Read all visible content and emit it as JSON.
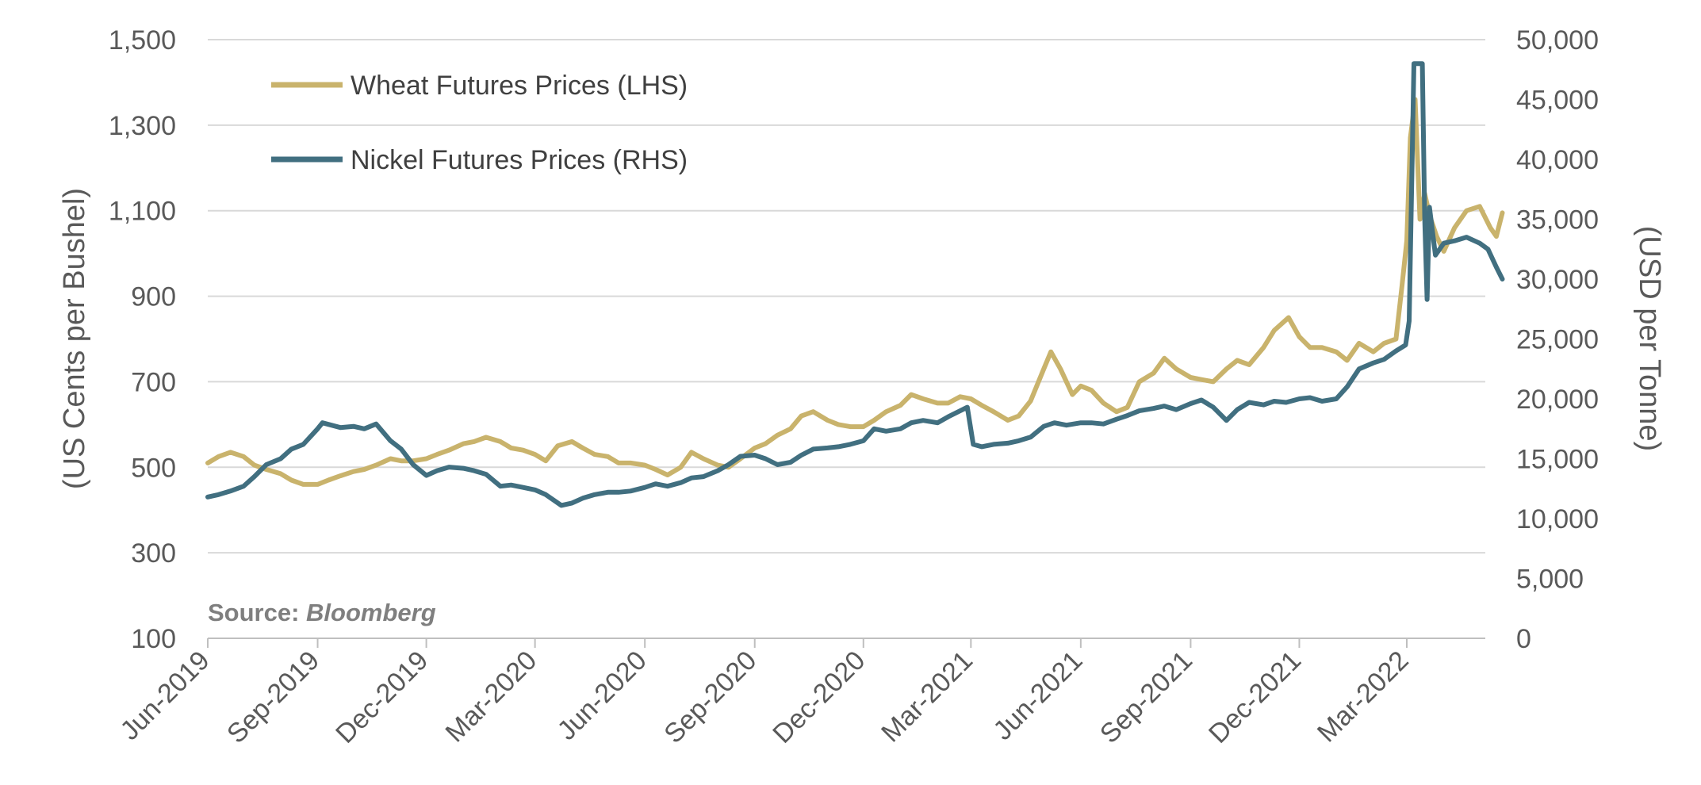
{
  "chart_data": {
    "type": "line",
    "title": "",
    "ylabel_left": "(US Cents per Bushel)",
    "ylabel_right": "(USD per Tonne)",
    "y_left": {
      "min": 100,
      "max": 1500,
      "ticks": [
        100,
        300,
        500,
        700,
        900,
        1100,
        1300,
        1500
      ],
      "tick_labels": [
        "100",
        "300",
        "500",
        "700",
        "900",
        "1,100",
        "1,300",
        "1,500"
      ]
    },
    "y_right": {
      "min": 0,
      "max": 50000,
      "ticks": [
        0,
        5000,
        10000,
        15000,
        20000,
        25000,
        30000,
        35000,
        40000,
        45000,
        50000
      ],
      "tick_labels": [
        "0",
        "5,000",
        "10,000",
        "15,000",
        "20,000",
        "25,000",
        "30,000",
        "35,000",
        "40,000",
        "45,000",
        "50,000"
      ]
    },
    "x_axis": {
      "start": "2019-06-01",
      "end": "2022-05-20",
      "tick_dates": [
        "2019-06-01",
        "2019-09-01",
        "2019-12-01",
        "2020-03-01",
        "2020-06-01",
        "2020-09-01",
        "2020-12-01",
        "2021-03-01",
        "2021-06-01",
        "2021-09-01",
        "2021-12-01",
        "2022-03-01"
      ],
      "tick_labels": [
        "Jun-2019",
        "Sep-2019",
        "Dec-2019",
        "Mar-2020",
        "Jun-2020",
        "Sep-2020",
        "Dec-2020",
        "Mar-2021",
        "Jun-2021",
        "Sep-2021",
        "Dec-2021",
        "Mar-2022"
      ]
    },
    "grid": true,
    "legend_position": "top-left",
    "annotation": {
      "prefix": "Source:",
      "source": "Bloomberg"
    },
    "series": [
      {
        "name": "Wheat Futures Prices (LHS)",
        "axis": "left",
        "color": "#c9b36c",
        "points": [
          [
            "2019-06-01",
            510
          ],
          [
            "2019-06-10",
            525
          ],
          [
            "2019-06-20",
            535
          ],
          [
            "2019-07-01",
            525
          ],
          [
            "2019-07-10",
            505
          ],
          [
            "2019-07-20",
            495
          ],
          [
            "2019-08-01",
            485
          ],
          [
            "2019-08-10",
            470
          ],
          [
            "2019-08-20",
            460
          ],
          [
            "2019-09-01",
            460
          ],
          [
            "2019-09-10",
            470
          ],
          [
            "2019-09-20",
            480
          ],
          [
            "2019-10-01",
            490
          ],
          [
            "2019-10-10",
            495
          ],
          [
            "2019-10-20",
            505
          ],
          [
            "2019-11-01",
            520
          ],
          [
            "2019-11-10",
            515
          ],
          [
            "2019-11-20",
            515
          ],
          [
            "2019-12-01",
            520
          ],
          [
            "2019-12-10",
            530
          ],
          [
            "2019-12-20",
            540
          ],
          [
            "2020-01-01",
            555
          ],
          [
            "2020-01-10",
            560
          ],
          [
            "2020-01-20",
            570
          ],
          [
            "2020-02-01",
            560
          ],
          [
            "2020-02-10",
            545
          ],
          [
            "2020-02-20",
            540
          ],
          [
            "2020-03-01",
            530
          ],
          [
            "2020-03-10",
            515
          ],
          [
            "2020-03-20",
            550
          ],
          [
            "2020-04-01",
            560
          ],
          [
            "2020-04-10",
            545
          ],
          [
            "2020-04-20",
            530
          ],
          [
            "2020-05-01",
            525
          ],
          [
            "2020-05-10",
            510
          ],
          [
            "2020-05-20",
            510
          ],
          [
            "2020-06-01",
            505
          ],
          [
            "2020-06-10",
            495
          ],
          [
            "2020-06-20",
            482
          ],
          [
            "2020-07-01",
            500
          ],
          [
            "2020-07-10",
            535
          ],
          [
            "2020-07-20",
            520
          ],
          [
            "2020-08-01",
            505
          ],
          [
            "2020-08-10",
            500
          ],
          [
            "2020-08-20",
            520
          ],
          [
            "2020-09-01",
            545
          ],
          [
            "2020-09-10",
            555
          ],
          [
            "2020-09-20",
            575
          ],
          [
            "2020-10-01",
            590
          ],
          [
            "2020-10-10",
            620
          ],
          [
            "2020-10-20",
            630
          ],
          [
            "2020-11-01",
            610
          ],
          [
            "2020-11-10",
            600
          ],
          [
            "2020-11-20",
            595
          ],
          [
            "2020-12-01",
            595
          ],
          [
            "2020-12-10",
            610
          ],
          [
            "2020-12-20",
            630
          ],
          [
            "2021-01-01",
            645
          ],
          [
            "2021-01-10",
            670
          ],
          [
            "2021-01-20",
            660
          ],
          [
            "2021-02-01",
            650
          ],
          [
            "2021-02-10",
            650
          ],
          [
            "2021-02-20",
            665
          ],
          [
            "2021-03-01",
            660
          ],
          [
            "2021-03-10",
            645
          ],
          [
            "2021-03-20",
            630
          ],
          [
            "2021-04-01",
            610
          ],
          [
            "2021-04-10",
            620
          ],
          [
            "2021-04-20",
            655
          ],
          [
            "2021-05-01",
            730
          ],
          [
            "2021-05-07",
            770
          ],
          [
            "2021-05-15",
            730
          ],
          [
            "2021-05-25",
            670
          ],
          [
            "2021-06-01",
            690
          ],
          [
            "2021-06-10",
            680
          ],
          [
            "2021-06-20",
            650
          ],
          [
            "2021-07-01",
            630
          ],
          [
            "2021-07-10",
            640
          ],
          [
            "2021-07-20",
            700
          ],
          [
            "2021-08-01",
            720
          ],
          [
            "2021-08-10",
            755
          ],
          [
            "2021-08-20",
            730
          ],
          [
            "2021-09-01",
            710
          ],
          [
            "2021-09-10",
            705
          ],
          [
            "2021-09-20",
            700
          ],
          [
            "2021-10-01",
            730
          ],
          [
            "2021-10-10",
            750
          ],
          [
            "2021-10-20",
            740
          ],
          [
            "2021-11-01",
            780
          ],
          [
            "2021-11-10",
            820
          ],
          [
            "2021-11-22",
            850
          ],
          [
            "2021-12-01",
            805
          ],
          [
            "2021-12-10",
            780
          ],
          [
            "2021-12-20",
            780
          ],
          [
            "2022-01-01",
            770
          ],
          [
            "2022-01-10",
            750
          ],
          [
            "2022-01-20",
            790
          ],
          [
            "2022-02-01",
            770
          ],
          [
            "2022-02-10",
            790
          ],
          [
            "2022-02-20",
            800
          ],
          [
            "2022-02-25",
            925
          ],
          [
            "2022-03-01",
            1030
          ],
          [
            "2022-03-04",
            1270
          ],
          [
            "2022-03-08",
            1360
          ],
          [
            "2022-03-12",
            1080
          ],
          [
            "2022-03-16",
            1140
          ],
          [
            "2022-03-20",
            1090
          ],
          [
            "2022-03-26",
            1040
          ],
          [
            "2022-04-01",
            1005
          ],
          [
            "2022-04-10",
            1060
          ],
          [
            "2022-04-20",
            1100
          ],
          [
            "2022-05-01",
            1110
          ],
          [
            "2022-05-10",
            1060
          ],
          [
            "2022-05-15",
            1040
          ],
          [
            "2022-05-20",
            1095
          ]
        ]
      },
      {
        "name": "Nickel Futures Prices (RHS)",
        "axis": "right",
        "color": "#416f80",
        "points": [
          [
            "2019-06-01",
            11800
          ],
          [
            "2019-06-10",
            12000
          ],
          [
            "2019-06-20",
            12300
          ],
          [
            "2019-07-01",
            12700
          ],
          [
            "2019-07-10",
            13500
          ],
          [
            "2019-07-20",
            14500
          ],
          [
            "2019-08-01",
            15000
          ],
          [
            "2019-08-10",
            15800
          ],
          [
            "2019-08-20",
            16200
          ],
          [
            "2019-09-01",
            17500
          ],
          [
            "2019-09-05",
            18000
          ],
          [
            "2019-09-20",
            17600
          ],
          [
            "2019-10-01",
            17700
          ],
          [
            "2019-10-10",
            17500
          ],
          [
            "2019-10-20",
            17900
          ],
          [
            "2019-11-01",
            16500
          ],
          [
            "2019-11-10",
            15800
          ],
          [
            "2019-11-20",
            14500
          ],
          [
            "2019-12-01",
            13600
          ],
          [
            "2019-12-10",
            14000
          ],
          [
            "2019-12-20",
            14300
          ],
          [
            "2020-01-01",
            14200
          ],
          [
            "2020-01-10",
            14000
          ],
          [
            "2020-01-20",
            13700
          ],
          [
            "2020-02-01",
            12700
          ],
          [
            "2020-02-10",
            12800
          ],
          [
            "2020-02-20",
            12600
          ],
          [
            "2020-03-01",
            12400
          ],
          [
            "2020-03-10",
            12000
          ],
          [
            "2020-03-23",
            11100
          ],
          [
            "2020-04-01",
            11300
          ],
          [
            "2020-04-10",
            11700
          ],
          [
            "2020-04-20",
            12000
          ],
          [
            "2020-05-01",
            12200
          ],
          [
            "2020-05-10",
            12200
          ],
          [
            "2020-05-20",
            12300
          ],
          [
            "2020-06-01",
            12600
          ],
          [
            "2020-06-10",
            12900
          ],
          [
            "2020-06-20",
            12700
          ],
          [
            "2020-07-01",
            13000
          ],
          [
            "2020-07-10",
            13400
          ],
          [
            "2020-07-20",
            13500
          ],
          [
            "2020-08-01",
            14000
          ],
          [
            "2020-08-10",
            14500
          ],
          [
            "2020-08-20",
            15200
          ],
          [
            "2020-09-01",
            15300
          ],
          [
            "2020-09-10",
            15000
          ],
          [
            "2020-09-20",
            14500
          ],
          [
            "2020-10-01",
            14700
          ],
          [
            "2020-10-10",
            15300
          ],
          [
            "2020-10-20",
            15800
          ],
          [
            "2020-11-01",
            15900
          ],
          [
            "2020-11-10",
            16000
          ],
          [
            "2020-11-20",
            16200
          ],
          [
            "2020-12-01",
            16500
          ],
          [
            "2020-12-10",
            17500
          ],
          [
            "2020-12-20",
            17300
          ],
          [
            "2021-01-01",
            17500
          ],
          [
            "2021-01-10",
            18000
          ],
          [
            "2021-01-20",
            18200
          ],
          [
            "2021-02-01",
            18000
          ],
          [
            "2021-02-10",
            18500
          ],
          [
            "2021-02-20",
            19000
          ],
          [
            "2021-02-26",
            19300
          ],
          [
            "2021-03-03",
            16200
          ],
          [
            "2021-03-10",
            16000
          ],
          [
            "2021-03-20",
            16200
          ],
          [
            "2021-04-01",
            16300
          ],
          [
            "2021-04-10",
            16500
          ],
          [
            "2021-04-20",
            16800
          ],
          [
            "2021-05-01",
            17700
          ],
          [
            "2021-05-10",
            18000
          ],
          [
            "2021-05-20",
            17800
          ],
          [
            "2021-06-01",
            18000
          ],
          [
            "2021-06-10",
            18000
          ],
          [
            "2021-06-20",
            17900
          ],
          [
            "2021-07-01",
            18300
          ],
          [
            "2021-07-10",
            18600
          ],
          [
            "2021-07-20",
            19000
          ],
          [
            "2021-08-01",
            19200
          ],
          [
            "2021-08-10",
            19400
          ],
          [
            "2021-08-20",
            19100
          ],
          [
            "2021-09-01",
            19600
          ],
          [
            "2021-09-10",
            19900
          ],
          [
            "2021-09-20",
            19300
          ],
          [
            "2021-10-01",
            18200
          ],
          [
            "2021-10-10",
            19100
          ],
          [
            "2021-10-20",
            19700
          ],
          [
            "2021-11-01",
            19500
          ],
          [
            "2021-11-10",
            19800
          ],
          [
            "2021-11-20",
            19700
          ],
          [
            "2021-12-01",
            20000
          ],
          [
            "2021-12-10",
            20100
          ],
          [
            "2021-12-20",
            19800
          ],
          [
            "2022-01-01",
            20000
          ],
          [
            "2022-01-10",
            21000
          ],
          [
            "2022-01-20",
            22500
          ],
          [
            "2022-02-01",
            23000
          ],
          [
            "2022-02-10",
            23300
          ],
          [
            "2022-02-20",
            24000
          ],
          [
            "2022-02-28",
            24500
          ],
          [
            "2022-03-03",
            26500
          ],
          [
            "2022-03-07",
            48000
          ],
          [
            "2022-03-14",
            48000
          ],
          [
            "2022-03-16",
            35000
          ],
          [
            "2022-03-18",
            28300
          ],
          [
            "2022-03-20",
            36000
          ],
          [
            "2022-03-25",
            32000
          ],
          [
            "2022-04-01",
            33000
          ],
          [
            "2022-04-10",
            33200
          ],
          [
            "2022-04-20",
            33500
          ],
          [
            "2022-05-01",
            33000
          ],
          [
            "2022-05-08",
            32500
          ],
          [
            "2022-05-15",
            31000
          ],
          [
            "2022-05-20",
            30000
          ]
        ]
      }
    ]
  }
}
